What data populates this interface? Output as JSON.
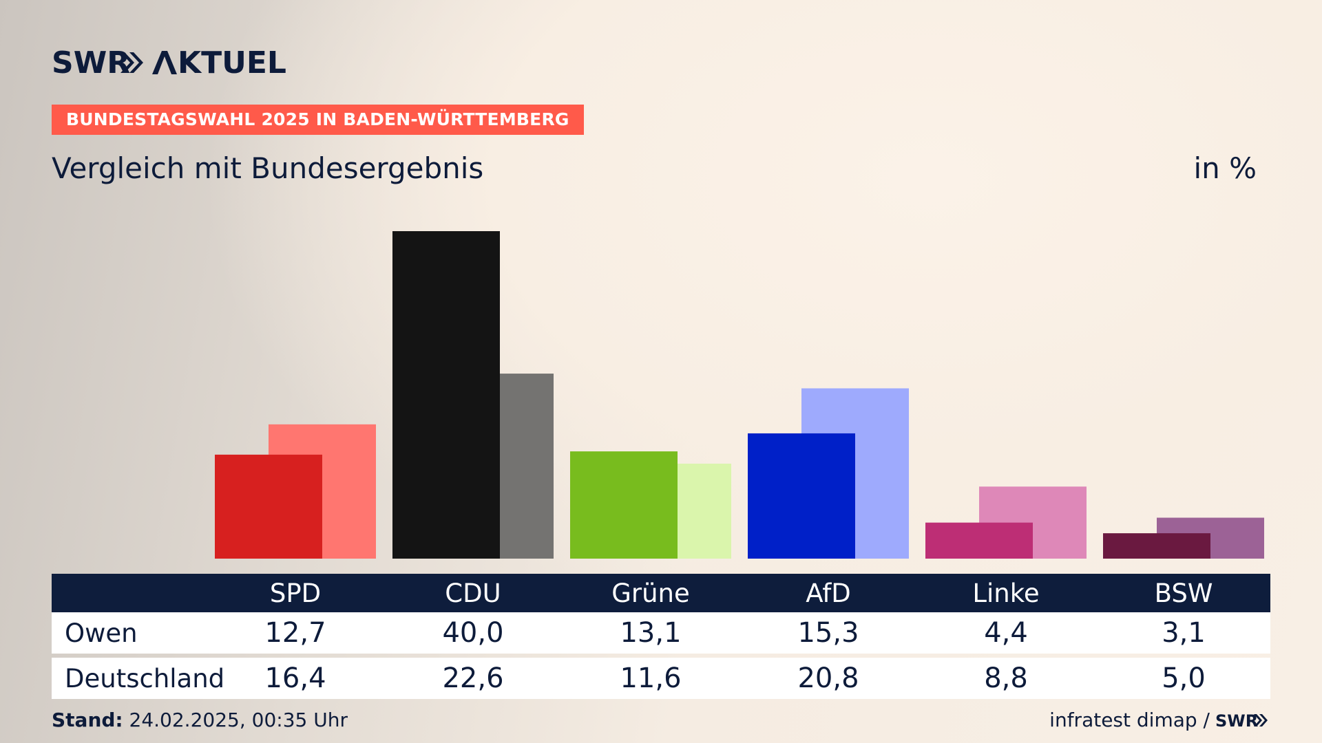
{
  "brand": {
    "logo_text": "SWR AKTUELL"
  },
  "header": {
    "kicker": "BUNDESTAGSWAHL 2025 IN BADEN-WÜRTTEMBERG",
    "subtitle": "Vergleich mit Bundesergebnis",
    "unit": "in %"
  },
  "colors": {
    "background": "#f8efe5",
    "kicker_bg": "#ff5a4a",
    "table_header_bg": "#0e1d3c",
    "text": "#0d1b3a"
  },
  "chart_data": {
    "type": "bar",
    "categories": [
      "SPD",
      "CDU",
      "Grüne",
      "AfD",
      "Linke",
      "BSW"
    ],
    "series": [
      {
        "name": "Owen",
        "values": [
          12.7,
          40.0,
          13.1,
          15.3,
          4.4,
          3.1
        ],
        "colors": [
          "#d7201f",
          "#141414",
          "#78bc1e",
          "#0020c8",
          "#bd2e75",
          "#6a1940"
        ]
      },
      {
        "name": "Deutschland",
        "values": [
          16.4,
          22.6,
          11.6,
          20.8,
          8.8,
          5.0
        ],
        "colors": [
          "#ff7670",
          "#747371",
          "#daf5ac",
          "#9eaafd",
          "#de88b8",
          "#9c6296"
        ]
      }
    ],
    "ylim": [
      0,
      40.0
    ],
    "grid": false,
    "legend": "table below chart"
  },
  "table": {
    "rows": [
      {
        "label": "Owen",
        "values": [
          "12,7",
          "40,0",
          "13,1",
          "15,3",
          "4,4",
          "3,1"
        ]
      },
      {
        "label": "Deutschland",
        "values": [
          "16,4",
          "22,6",
          "11,6",
          "20,8",
          "8,8",
          "5,0"
        ]
      }
    ]
  },
  "footer": {
    "stand_label": "Stand:",
    "stand_value": " 24.02.2025, 00:35 Uhr",
    "source": "infratest dimap /",
    "source_logo": "SWR"
  }
}
